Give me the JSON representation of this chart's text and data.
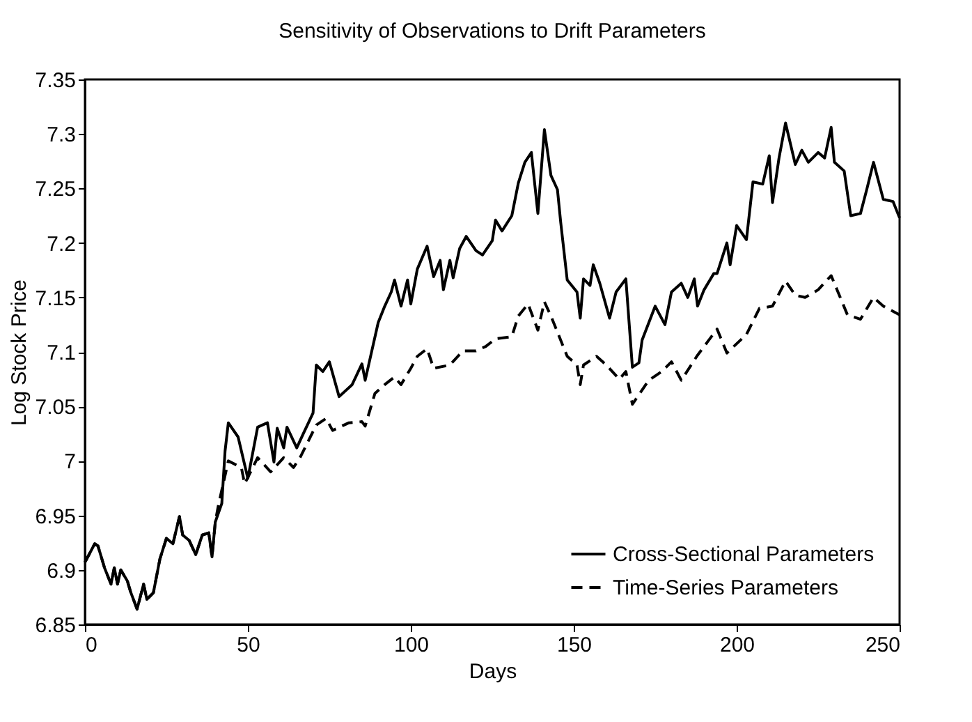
{
  "chart_data": {
    "type": "line",
    "title": "Sensitivity of Observations to Drift Parameters",
    "xlabel": "Days",
    "ylabel": "Log Stock Price",
    "xlim": [
      0,
      250
    ],
    "xticks": [
      0,
      50,
      100,
      150,
      200,
      250
    ],
    "ylim": [
      6.85,
      7.35
    ],
    "yticks": [
      6.85,
      6.9,
      6.95,
      7,
      7.05,
      7.1,
      7.15,
      7.2,
      7.25,
      7.3,
      7.35
    ],
    "grid": false,
    "legend": "bottom right",
    "marker": "none",
    "series": [
      {
        "name": "Cross-Sectional Parameters",
        "color": "#000000",
        "line_style": "solid",
        "x": [
          0,
          3,
          4,
          6,
          8,
          9,
          10,
          11,
          13,
          14,
          16,
          18,
          19,
          21,
          23,
          25,
          27,
          29,
          30,
          32,
          34,
          36,
          38,
          39,
          40,
          42,
          43,
          44,
          47,
          50,
          53,
          56,
          58,
          59,
          61,
          62,
          65,
          67,
          70,
          71,
          73,
          75,
          78,
          82,
          85,
          86,
          90,
          92,
          94,
          95,
          97,
          99,
          100,
          102,
          105,
          107,
          109,
          110,
          112,
          113,
          115,
          117,
          120,
          122,
          125,
          126,
          128,
          131,
          133,
          135,
          137,
          139,
          141,
          143,
          145,
          146,
          148,
          151,
          152,
          153,
          155,
          156,
          158,
          161,
          163,
          166,
          168,
          170,
          171,
          175,
          178,
          180,
          183,
          185,
          187,
          188,
          190,
          193,
          194,
          197,
          198,
          200,
          203,
          205,
          208,
          210,
          211,
          213,
          215,
          218,
          220,
          222,
          225,
          227,
          229,
          230,
          233,
          235,
          238,
          240,
          242,
          245,
          248,
          250
        ],
        "values": [
          6.907,
          6.924,
          6.922,
          6.902,
          6.887,
          6.902,
          6.887,
          6.9,
          6.89,
          6.88,
          6.864,
          6.887,
          6.873,
          6.879,
          6.91,
          6.929,
          6.924,
          6.949,
          6.932,
          6.927,
          6.914,
          6.932,
          6.934,
          6.912,
          6.944,
          6.961,
          7.009,
          7.035,
          7.022,
          6.984,
          7.031,
          7.035,
          6.999,
          7.03,
          7.012,
          7.031,
          7.012,
          7.025,
          7.044,
          7.088,
          7.082,
          7.091,
          7.059,
          7.07,
          7.089,
          7.074,
          7.127,
          7.142,
          7.155,
          7.166,
          7.142,
          7.166,
          7.144,
          7.176,
          7.197,
          7.169,
          7.184,
          7.157,
          7.184,
          7.168,
          7.195,
          7.206,
          7.193,
          7.189,
          7.202,
          7.221,
          7.211,
          7.225,
          7.255,
          7.274,
          7.283,
          7.227,
          7.304,
          7.262,
          7.249,
          7.219,
          7.166,
          7.155,
          7.131,
          7.167,
          7.161,
          7.18,
          7.163,
          7.131,
          7.155,
          7.167,
          7.086,
          7.09,
          7.111,
          7.142,
          7.125,
          7.155,
          7.163,
          7.15,
          7.167,
          7.142,
          7.157,
          7.172,
          7.172,
          7.2,
          7.18,
          7.216,
          7.203,
          7.256,
          7.254,
          7.28,
          7.237,
          7.278,
          7.31,
          7.272,
          7.285,
          7.274,
          7.283,
          7.278,
          7.306,
          7.274,
          7.266,
          7.225,
          7.227,
          7.25,
          7.274,
          7.24,
          7.238,
          7.223
        ]
      },
      {
        "name": "Time-Series Parameters",
        "color": "#000000",
        "line_style": "dashed",
        "x": [
          0,
          3,
          4,
          6,
          8,
          9,
          10,
          11,
          13,
          14,
          16,
          18,
          19,
          21,
          23,
          25,
          27,
          29,
          30,
          32,
          34,
          36,
          38,
          39,
          40,
          41,
          44,
          48,
          49,
          53,
          57,
          61,
          64,
          66,
          71,
          74,
          76,
          81,
          85,
          86,
          89,
          92,
          95,
          97,
          100,
          102,
          105,
          107,
          112,
          116,
          120,
          123,
          126,
          131,
          133,
          136,
          139,
          141,
          143,
          148,
          151,
          152,
          153,
          157,
          160,
          164,
          166,
          168,
          173,
          177,
          180,
          183,
          188,
          194,
          197,
          203,
          207,
          211,
          215,
          218,
          221,
          225,
          229,
          234,
          238,
          242,
          245,
          250
        ],
        "values": [
          6.907,
          6.924,
          6.922,
          6.902,
          6.887,
          6.902,
          6.887,
          6.9,
          6.89,
          6.88,
          6.864,
          6.887,
          6.873,
          6.879,
          6.91,
          6.929,
          6.924,
          6.949,
          6.932,
          6.927,
          6.914,
          6.932,
          6.934,
          6.912,
          6.944,
          6.96,
          7.0,
          6.994,
          6.979,
          7.003,
          6.99,
          7.003,
          6.994,
          7.003,
          7.033,
          7.039,
          7.028,
          7.035,
          7.036,
          7.032,
          7.062,
          7.07,
          7.077,
          7.07,
          7.085,
          7.096,
          7.103,
          7.085,
          7.088,
          7.101,
          7.101,
          7.105,
          7.112,
          7.114,
          7.133,
          7.144,
          7.12,
          7.146,
          7.133,
          7.096,
          7.088,
          7.07,
          7.088,
          7.096,
          7.088,
          7.075,
          7.082,
          7.052,
          7.074,
          7.082,
          7.091,
          7.074,
          7.097,
          7.121,
          7.099,
          7.116,
          7.14,
          7.142,
          7.165,
          7.152,
          7.15,
          7.157,
          7.17,
          7.134,
          7.13,
          7.15,
          7.142,
          7.134
        ]
      }
    ]
  }
}
